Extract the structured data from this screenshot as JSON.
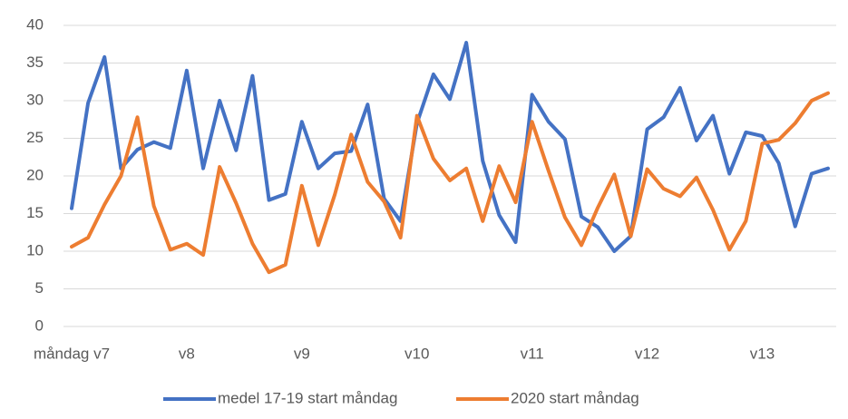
{
  "chart_data": {
    "type": "line",
    "categories": [
      "måndag v7",
      null,
      null,
      null,
      null,
      null,
      null,
      "v8",
      null,
      null,
      null,
      null,
      null,
      null,
      "v9",
      null,
      null,
      null,
      null,
      null,
      null,
      "v10",
      null,
      null,
      null,
      null,
      null,
      null,
      "v11",
      null,
      null,
      null,
      null,
      null,
      null,
      "v12",
      null,
      null,
      null,
      null,
      null,
      null,
      "v13",
      null,
      null,
      null,
      null
    ],
    "series": [
      {
        "name": "medel 17-19 start måndag",
        "color": "#4472c4",
        "values": [
          15.7,
          29.7,
          35.8,
          21,
          23.5,
          24.5,
          23.7,
          34,
          21,
          30,
          23.4,
          33.3,
          16.8,
          17.6,
          27.2,
          21,
          23,
          23.3,
          29.5,
          17,
          14,
          27,
          33.5,
          30.2,
          37.7,
          22,
          14.8,
          11.2,
          30.8,
          27.2,
          24.9,
          14.6,
          13.2,
          10,
          12,
          26.2,
          27.8,
          31.7,
          24.7,
          28,
          20.3,
          25.8,
          25.3,
          21.7,
          13.3,
          20.3,
          21
        ]
      },
      {
        "name": "2020 start måndag",
        "color": "#ed7d31",
        "values": [
          10.6,
          11.8,
          16.2,
          20,
          27.8,
          16,
          10.2,
          11,
          9.5,
          21.2,
          16.4,
          11,
          7.2,
          8.2,
          18.7,
          10.8,
          17.5,
          25.5,
          19.2,
          16.6,
          11.8,
          28,
          22.3,
          19.4,
          21,
          14,
          21.3,
          16.5,
          27.2,
          20.7,
          14.5,
          10.8,
          15.8,
          20.2,
          12,
          20.9,
          18.3,
          17.3,
          19.8,
          15.5,
          10.2,
          14,
          24.3,
          24.8,
          27,
          30,
          31
        ]
      }
    ],
    "ylim": [
      0,
      40
    ],
    "yticks": [
      0,
      5,
      10,
      15,
      20,
      25,
      30,
      35,
      40
    ],
    "grid": true,
    "legend": "bottom"
  }
}
